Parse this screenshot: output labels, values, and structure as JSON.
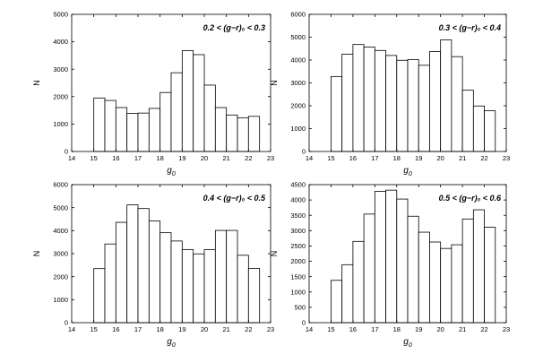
{
  "chart_data": [
    {
      "type": "bar",
      "annotation": "0.2 < (g−r)₀ < 0.3",
      "xlabel": "g",
      "xlabel_sub": "0",
      "ylabel": "N",
      "xlim": [
        14,
        23
      ],
      "ylim": [
        0,
        5000
      ],
      "xticks": [
        14,
        15,
        16,
        17,
        18,
        19,
        20,
        21,
        22,
        23
      ],
      "yticks": [
        0,
        1000,
        2000,
        3000,
        4000,
        5000
      ],
      "bin_width": 0.5,
      "x": [
        15.25,
        15.75,
        16.25,
        16.75,
        17.25,
        17.75,
        18.25,
        18.75,
        19.25,
        19.75,
        20.25,
        20.75,
        21.25,
        21.75,
        22.25
      ],
      "values": [
        1950,
        1860,
        1600,
        1390,
        1400,
        1570,
        2150,
        2870,
        3680,
        3530,
        2420,
        1600,
        1330,
        1230,
        1280
      ]
    },
    {
      "type": "bar",
      "annotation": "0.3 < (g−r)₀ < 0.4",
      "xlabel": "g",
      "xlabel_sub": "0",
      "ylabel": "N",
      "xlim": [
        14,
        23
      ],
      "ylim": [
        0,
        6000
      ],
      "xticks": [
        14,
        15,
        16,
        17,
        18,
        19,
        20,
        21,
        22,
        23
      ],
      "yticks": [
        0,
        1000,
        2000,
        3000,
        4000,
        5000,
        6000
      ],
      "bin_width": 0.5,
      "x": [
        15.25,
        15.75,
        16.25,
        16.75,
        17.25,
        17.75,
        18.25,
        18.75,
        19.25,
        19.75,
        20.25,
        20.75,
        21.25,
        21.75,
        22.25
      ],
      "values": [
        3280,
        4260,
        4680,
        4570,
        4420,
        4200,
        3990,
        4020,
        3770,
        4370,
        4880,
        4150,
        2680,
        1990,
        1780
      ]
    },
    {
      "type": "bar",
      "annotation": "0.4 < (g−r)₀ < 0.5",
      "xlabel": "g",
      "xlabel_sub": "0",
      "ylabel": "N",
      "xlim": [
        14,
        23
      ],
      "ylim": [
        0,
        6000
      ],
      "xticks": [
        14,
        15,
        16,
        17,
        18,
        19,
        20,
        21,
        22,
        23
      ],
      "yticks": [
        0,
        1000,
        2000,
        3000,
        4000,
        5000,
        6000
      ],
      "bin_width": 0.5,
      "x": [
        15.25,
        15.75,
        16.25,
        16.75,
        17.25,
        17.75,
        18.25,
        18.75,
        19.25,
        19.75,
        20.25,
        20.75,
        21.25,
        21.75,
        22.25
      ],
      "values": [
        2350,
        3420,
        4360,
        5120,
        4960,
        4420,
        3910,
        3550,
        3180,
        2990,
        3180,
        4010,
        4010,
        2930,
        2360
      ]
    },
    {
      "type": "bar",
      "annotation": "0.5 < (g−r)₀ < 0.6",
      "xlabel": "g",
      "xlabel_sub": "0",
      "ylabel": "N",
      "xlim": [
        14,
        23
      ],
      "ylim": [
        0,
        4500
      ],
      "xticks": [
        14,
        15,
        16,
        17,
        18,
        19,
        20,
        21,
        22,
        23
      ],
      "yticks": [
        0,
        500,
        1000,
        1500,
        2000,
        2500,
        3000,
        3500,
        4000,
        4500
      ],
      "bin_width": 0.5,
      "x": [
        15.25,
        15.75,
        16.25,
        16.75,
        17.25,
        17.75,
        18.25,
        18.75,
        19.25,
        19.75,
        20.25,
        20.75,
        21.25,
        21.75,
        22.25
      ],
      "values": [
        1380,
        1890,
        2650,
        3540,
        4280,
        4320,
        4030,
        3470,
        2950,
        2630,
        2420,
        2540,
        3380,
        3680,
        3110
      ]
    }
  ]
}
